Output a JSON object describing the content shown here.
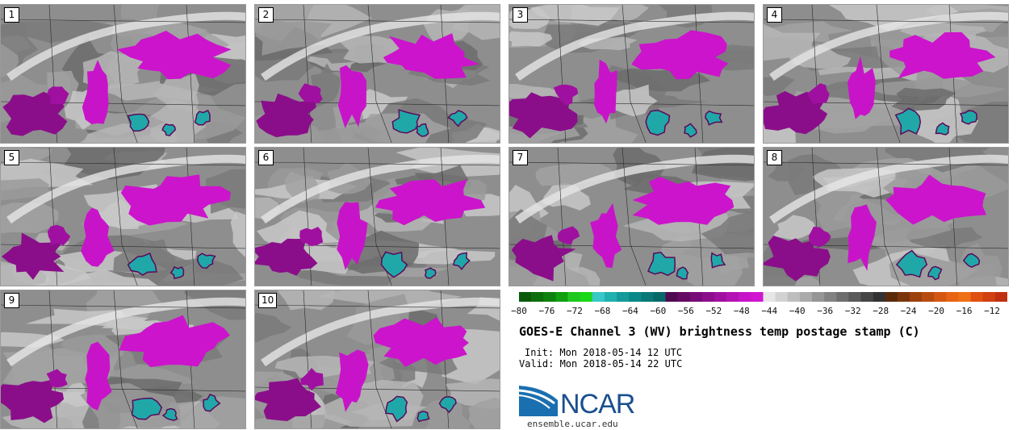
{
  "panels": [
    {
      "label": "1"
    },
    {
      "label": "2"
    },
    {
      "label": "3"
    },
    {
      "label": "4"
    },
    {
      "label": "5"
    },
    {
      "label": "6"
    },
    {
      "label": "7"
    },
    {
      "label": "8"
    },
    {
      "label": "9"
    },
    {
      "label": "10"
    }
  ],
  "colorbar": {
    "ticks": [
      "−80",
      "−76",
      "−72",
      "−68",
      "−64",
      "−60",
      "−56",
      "−52",
      "−48",
      "−44",
      "−40",
      "−36",
      "−32",
      "−28",
      "−24",
      "−20",
      "−16",
      "−12"
    ],
    "colors": [
      "#0a5a0a",
      "#0c6e0c",
      "#0e820e",
      "#10a010",
      "#1ec81e",
      "#18d818",
      "#38c8c8",
      "#20b0b0",
      "#149a9a",
      "#0a8888",
      "#087878",
      "#086868",
      "#500a50",
      "#640a64",
      "#780c78",
      "#8c0e8c",
      "#a010a0",
      "#b412b4",
      "#c814c8",
      "#d016d0",
      "#e6e6e6",
      "#d2d2d2",
      "#bebebe",
      "#aaaaaa",
      "#969696",
      "#828282",
      "#6e6e6e",
      "#5a5a5a",
      "#464646",
      "#323232",
      "#5a2a0a",
      "#7a340c",
      "#9c400e",
      "#b84c10",
      "#d45812",
      "#e86414",
      "#f07018",
      "#e05010",
      "#d04010",
      "#c03010"
    ]
  },
  "title": "GOES-E Channel 3 (WV) brightness temp postage stamp (C)",
  "init": "Init: Mon 2018-05-14 12 UTC",
  "valid": "Valid: Mon 2018-05-14 22 UTC",
  "logo": {
    "text": "NCAR",
    "color": "#1a4f8e"
  },
  "site": "ensemble.ucar.edu"
}
